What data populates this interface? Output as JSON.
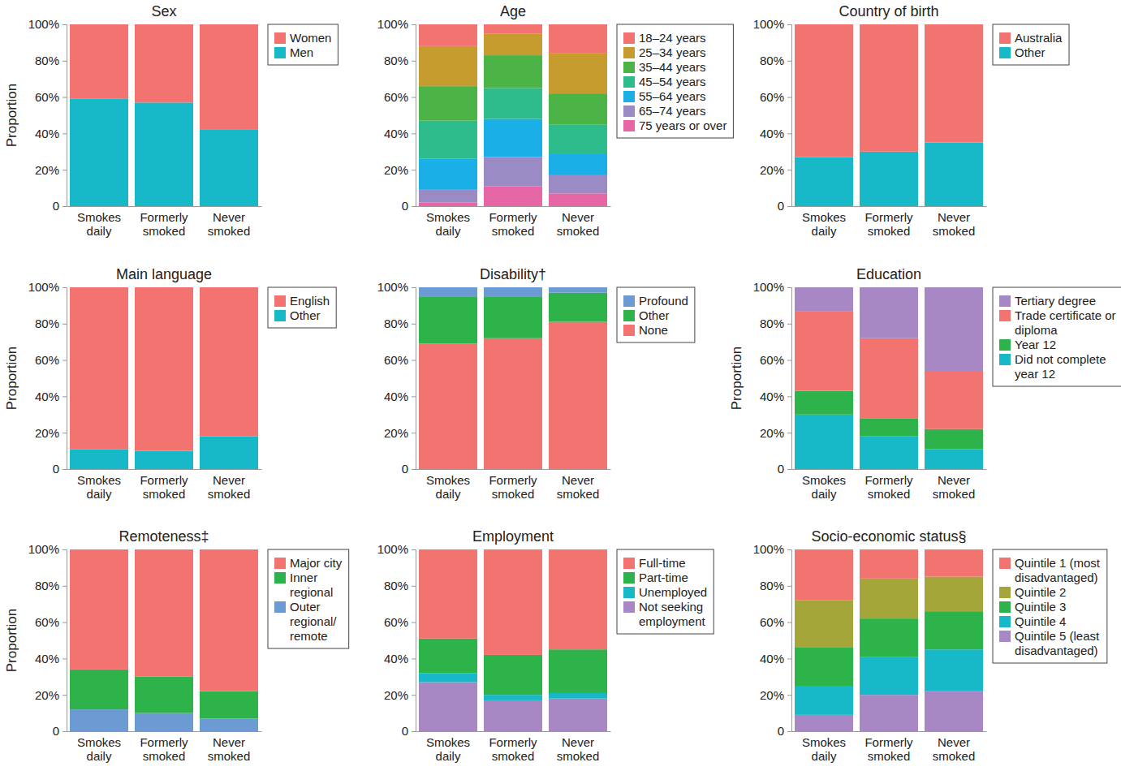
{
  "chart_data": [
    {
      "type": "bar",
      "title": "Sex",
      "ylabel": "Proportion",
      "stacked": true,
      "legend": "right",
      "categories": [
        "Smokes daily",
        "Formerly smoked",
        "Never smoked"
      ],
      "ylim": [
        0,
        100
      ],
      "yticks": [
        0,
        {
          "value": 20,
          "label": "20%"
        },
        {
          "value": 40,
          "label": "40%"
        },
        {
          "value": 60,
          "label": "60%"
        },
        {
          "value": 80,
          "label": "80%"
        },
        {
          "value": 100,
          "label": "100%"
        }
      ],
      "series": [
        {
          "name": "Women",
          "color": "#f37370",
          "values": [
            41,
            43,
            58
          ]
        },
        {
          "name": "Men",
          "color": "#17b8c8",
          "values": [
            59,
            57,
            42
          ]
        }
      ]
    },
    {
      "type": "bar",
      "title": "Age",
      "stacked": true,
      "legend": "right",
      "categories": [
        "Smokes daily",
        "Formerly smoked",
        "Never smoked"
      ],
      "ylim": [
        0,
        100
      ],
      "yticks": [
        0,
        {
          "value": 20,
          "label": "20%"
        },
        {
          "value": 40,
          "label": "40%"
        },
        {
          "value": 60,
          "label": "60%"
        },
        {
          "value": 80,
          "label": "80%"
        },
        {
          "value": 100,
          "label": "100%"
        }
      ],
      "series": [
        {
          "name": "18–24 years",
          "color": "#f37370",
          "values": [
            12,
            5,
            16
          ]
        },
        {
          "name": "25–34 years",
          "color": "#c79c2e",
          "values": [
            22,
            12,
            22
          ]
        },
        {
          "name": "35–44 years",
          "color": "#4cb447",
          "values": [
            19,
            18,
            17
          ]
        },
        {
          "name": "45–54 years",
          "color": "#2fbc8d",
          "values": [
            21,
            17,
            16
          ]
        },
        {
          "name": "55–64 years",
          "color": "#1aafe6",
          "values": [
            17,
            21,
            12
          ]
        },
        {
          "name": "65–74 years",
          "color": "#9b8bc5",
          "values": [
            7,
            16,
            10
          ]
        },
        {
          "name": "75 years or over",
          "color": "#e766a6",
          "values": [
            2,
            11,
            7
          ]
        }
      ]
    },
    {
      "type": "bar",
      "title": "Country of birth",
      "stacked": true,
      "legend": "right",
      "categories": [
        "Smokes daily",
        "Formerly smoked",
        "Never smoked"
      ],
      "ylim": [
        0,
        100
      ],
      "yticks": [
        0,
        {
          "value": 20,
          "label": "20%"
        },
        {
          "value": 40,
          "label": "40%"
        },
        {
          "value": 60,
          "label": "60%"
        },
        {
          "value": 80,
          "label": "80%"
        },
        {
          "value": 100,
          "label": "100%"
        }
      ],
      "series": [
        {
          "name": "Australia",
          "color": "#f37370",
          "values": [
            73,
            70,
            65
          ]
        },
        {
          "name": "Other",
          "color": "#17b8c8",
          "values": [
            27,
            30,
            35
          ]
        }
      ]
    },
    {
      "type": "bar",
      "title": "Main language",
      "ylabel": "Proportion",
      "stacked": true,
      "legend": "right",
      "categories": [
        "Smokes daily",
        "Formerly smoked",
        "Never smoked"
      ],
      "ylim": [
        0,
        100
      ],
      "yticks": [
        0,
        {
          "value": 20,
          "label": "20%"
        },
        {
          "value": 40,
          "label": "40%"
        },
        {
          "value": 60,
          "label": "60%"
        },
        {
          "value": 80,
          "label": "80%"
        },
        {
          "value": 100,
          "label": "100%"
        }
      ],
      "series": [
        {
          "name": "English",
          "color": "#f37370",
          "values": [
            89,
            90,
            82
          ]
        },
        {
          "name": "Other",
          "color": "#17b8c8",
          "values": [
            11,
            10,
            18
          ]
        }
      ]
    },
    {
      "type": "bar",
      "title": "Disability†",
      "stacked": true,
      "legend": "right",
      "categories": [
        "Smokes daily",
        "Formerly smoked",
        "Never smoked"
      ],
      "ylim": [
        0,
        100
      ],
      "yticks": [
        0,
        {
          "value": 20,
          "label": "20%"
        },
        {
          "value": 40,
          "label": "40%"
        },
        {
          "value": 60,
          "label": "60%"
        },
        {
          "value": 80,
          "label": "80%"
        },
        {
          "value": 100,
          "label": "100%"
        }
      ],
      "series": [
        {
          "name": "Profound",
          "color": "#6c9bd4",
          "values": [
            5,
            5,
            3
          ]
        },
        {
          "name": "Other",
          "color": "#2db34a",
          "values": [
            26,
            23,
            16
          ]
        },
        {
          "name": "None",
          "color": "#f37370",
          "values": [
            69,
            72,
            81
          ]
        }
      ]
    },
    {
      "type": "bar",
      "title": "Education",
      "ylabel": "Proportion",
      "stacked": true,
      "legend": "right",
      "categories": [
        "Smokes daily",
        "Formerly smoked",
        "Never smoked"
      ],
      "ylim": [
        0,
        100
      ],
      "yticks": [
        0,
        {
          "value": 20,
          "label": "20%"
        },
        {
          "value": 40,
          "label": "40%"
        },
        {
          "value": 60,
          "label": "60%"
        },
        {
          "value": 80,
          "label": "80%"
        },
        {
          "value": 100,
          "label": "100%"
        }
      ],
      "series": [
        {
          "name": "Tertiary degree",
          "color": "#a888c4",
          "values": [
            13,
            28,
            46
          ]
        },
        {
          "name": "Trade certificate or diploma",
          "color": "#f37370",
          "values": [
            44,
            44,
            32
          ]
        },
        {
          "name": "Year 12",
          "color": "#2db34a",
          "values": [
            13,
            10,
            11
          ]
        },
        {
          "name": "Did not complete year 12",
          "color": "#17b8c8",
          "values": [
            30,
            18,
            11
          ]
        }
      ]
    },
    {
      "type": "bar",
      "title": "Remoteness‡",
      "ylabel": "Proportion",
      "stacked": true,
      "legend": "right",
      "categories": [
        "Smokes daily",
        "Formerly smoked",
        "Never smoked"
      ],
      "ylim": [
        0,
        100
      ],
      "yticks": [
        0,
        {
          "value": 20,
          "label": "20%"
        },
        {
          "value": 40,
          "label": "40%"
        },
        {
          "value": 60,
          "label": "60%"
        },
        {
          "value": 80,
          "label": "80%"
        },
        {
          "value": 100,
          "label": "100%"
        }
      ],
      "series": [
        {
          "name": "Major city",
          "color": "#f37370",
          "values": [
            66,
            70,
            78
          ]
        },
        {
          "name": "Inner regional",
          "color": "#2db34a",
          "values": [
            22,
            20,
            15
          ]
        },
        {
          "name": "Outer regional/ remote",
          "color": "#6c9bd4",
          "values": [
            12,
            10,
            7
          ]
        }
      ]
    },
    {
      "type": "bar",
      "title": "Employment",
      "stacked": true,
      "legend": "right",
      "categories": [
        "Smokes daily",
        "Formerly smoked",
        "Never smoked"
      ],
      "ylim": [
        0,
        100
      ],
      "yticks": [
        0,
        {
          "value": 20,
          "label": "20%"
        },
        {
          "value": 40,
          "label": "40%"
        },
        {
          "value": 60,
          "label": "60%"
        },
        {
          "value": 80,
          "label": "80%"
        },
        {
          "value": 100,
          "label": "100%"
        }
      ],
      "series": [
        {
          "name": "Full-time",
          "color": "#f37370",
          "values": [
            49,
            58,
            55
          ]
        },
        {
          "name": "Part-time",
          "color": "#2db34a",
          "values": [
            19,
            22,
            24
          ]
        },
        {
          "name": "Unemployed",
          "color": "#17b8c8",
          "values": [
            5,
            3,
            3
          ]
        },
        {
          "name": "Not seeking employment",
          "color": "#a888c4",
          "values": [
            27,
            17,
            18
          ]
        }
      ]
    },
    {
      "type": "bar",
      "title": "Socio-economic status§",
      "stacked": true,
      "legend": "right",
      "categories": [
        "Smokes daily",
        "Formerly smoked",
        "Never smoked"
      ],
      "ylim": [
        0,
        100
      ],
      "yticks": [
        0,
        {
          "value": 20,
          "label": "20%"
        },
        {
          "value": 40,
          "label": "40%"
        },
        {
          "value": 60,
          "label": "60%"
        },
        {
          "value": 80,
          "label": "80%"
        },
        {
          "value": 100,
          "label": "100%"
        }
      ],
      "series": [
        {
          "name": "Quintile 1 (most disadvantaged)",
          "color": "#f37370",
          "values": [
            28,
            16,
            15
          ]
        },
        {
          "name": "Quintile 2",
          "color": "#a5a63a",
          "values": [
            26,
            22,
            19
          ]
        },
        {
          "name": "Quintile 3",
          "color": "#2db34a",
          "values": [
            21,
            21,
            21
          ]
        },
        {
          "name": "Quintile 4",
          "color": "#17b8c8",
          "values": [
            16,
            21,
            23
          ]
        },
        {
          "name": "Quintile 5 (least disadvantaged)",
          "color": "#a888c4",
          "values": [
            9,
            20,
            22
          ]
        }
      ]
    }
  ]
}
